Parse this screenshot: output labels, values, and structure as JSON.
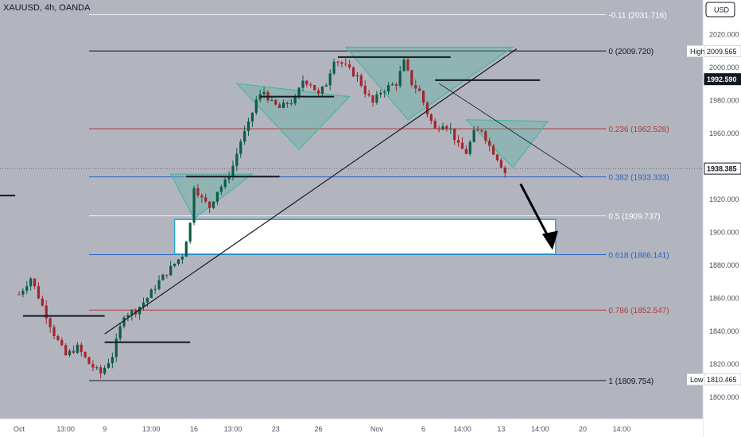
{
  "header": {
    "symbol_line": "XAUUSD, 4h, OANDA",
    "currency": "USD"
  },
  "chart_data": {
    "type": "candlestick",
    "symbol": "XAUUSD",
    "timeframe": "4h",
    "source": "OANDA",
    "ylim": [
      1790,
      2044
    ],
    "grid": false,
    "y_ticks": [
      1800,
      1820,
      1840,
      1860,
      1880,
      1900,
      1920,
      1940,
      1960,
      1980,
      2000,
      2020
    ],
    "y_tick_labels": [
      "1800.000",
      "1820.000",
      "1840.000",
      "1860.000",
      "1880.000",
      "1900.000",
      "1920.000",
      "1940.000",
      "1960.000",
      "1980.000",
      "2000.000",
      "2020.000"
    ],
    "x_ticks": [
      {
        "label": "Oct",
        "bar": 0
      },
      {
        "label": "13:00",
        "bar": 12
      },
      {
        "label": "9",
        "bar": 22
      },
      {
        "label": "13:00",
        "bar": 34
      },
      {
        "label": "16",
        "bar": 45
      },
      {
        "label": "13:00",
        "bar": 55
      },
      {
        "label": "23",
        "bar": 66
      },
      {
        "label": "26",
        "bar": 77
      },
      {
        "label": "Nov",
        "bar": 92
      },
      {
        "label": "6",
        "bar": 104
      },
      {
        "label": "14:00",
        "bar": 114
      },
      {
        "label": "13",
        "bar": 124
      },
      {
        "label": "14:00",
        "bar": 134
      },
      {
        "label": "20",
        "bar": 145
      },
      {
        "label": "14:00",
        "bar": 155
      }
    ],
    "bars_total": 170,
    "fib_levels": [
      {
        "label": "-0.11 (2031.716)",
        "value": 2031.716,
        "color": "#f0f0f0"
      },
      {
        "label": "0 (2009.720)",
        "value": 2009.72,
        "color": "#131722"
      },
      {
        "label": "0.236 (1962.528)",
        "value": 1962.528,
        "color": "#b33a3a"
      },
      {
        "label": "0.382 (1933.333)",
        "value": 1933.333,
        "color": "#2962c4"
      },
      {
        "label": "0.5 (1909.737)",
        "value": 1909.737,
        "color": "#f0f0f0"
      },
      {
        "label": "0.618 (1886.141)",
        "value": 1886.141,
        "color": "#2962c4"
      },
      {
        "label": "0.786 (1852.547)",
        "value": 1852.547,
        "color": "#b33a3a"
      },
      {
        "label": "1 (1809.754)",
        "value": 1809.754,
        "color": "#131722"
      }
    ],
    "price_tags": [
      {
        "label": "High",
        "value_text": "2009.565",
        "value": 2009.565,
        "style": "light"
      },
      {
        "label": "",
        "value_text": "1992.590",
        "value": 1992.59,
        "style": "dark"
      },
      {
        "label": "",
        "value_text": "1938.385",
        "value": 1938.385,
        "style": "current"
      },
      {
        "label": "Low",
        "value_text": "1810.465",
        "value": 1810.465,
        "style": "light"
      }
    ],
    "zone": {
      "top": 1907.5,
      "bottom": 1886.5,
      "bar_start": 40,
      "bar_end": 138
    },
    "colors": {
      "up": "#0c5c46",
      "down": "#a3252d",
      "pattern": "#4fb3a0",
      "background": "#b2b5be",
      "axis": "#ffffff"
    }
  }
}
